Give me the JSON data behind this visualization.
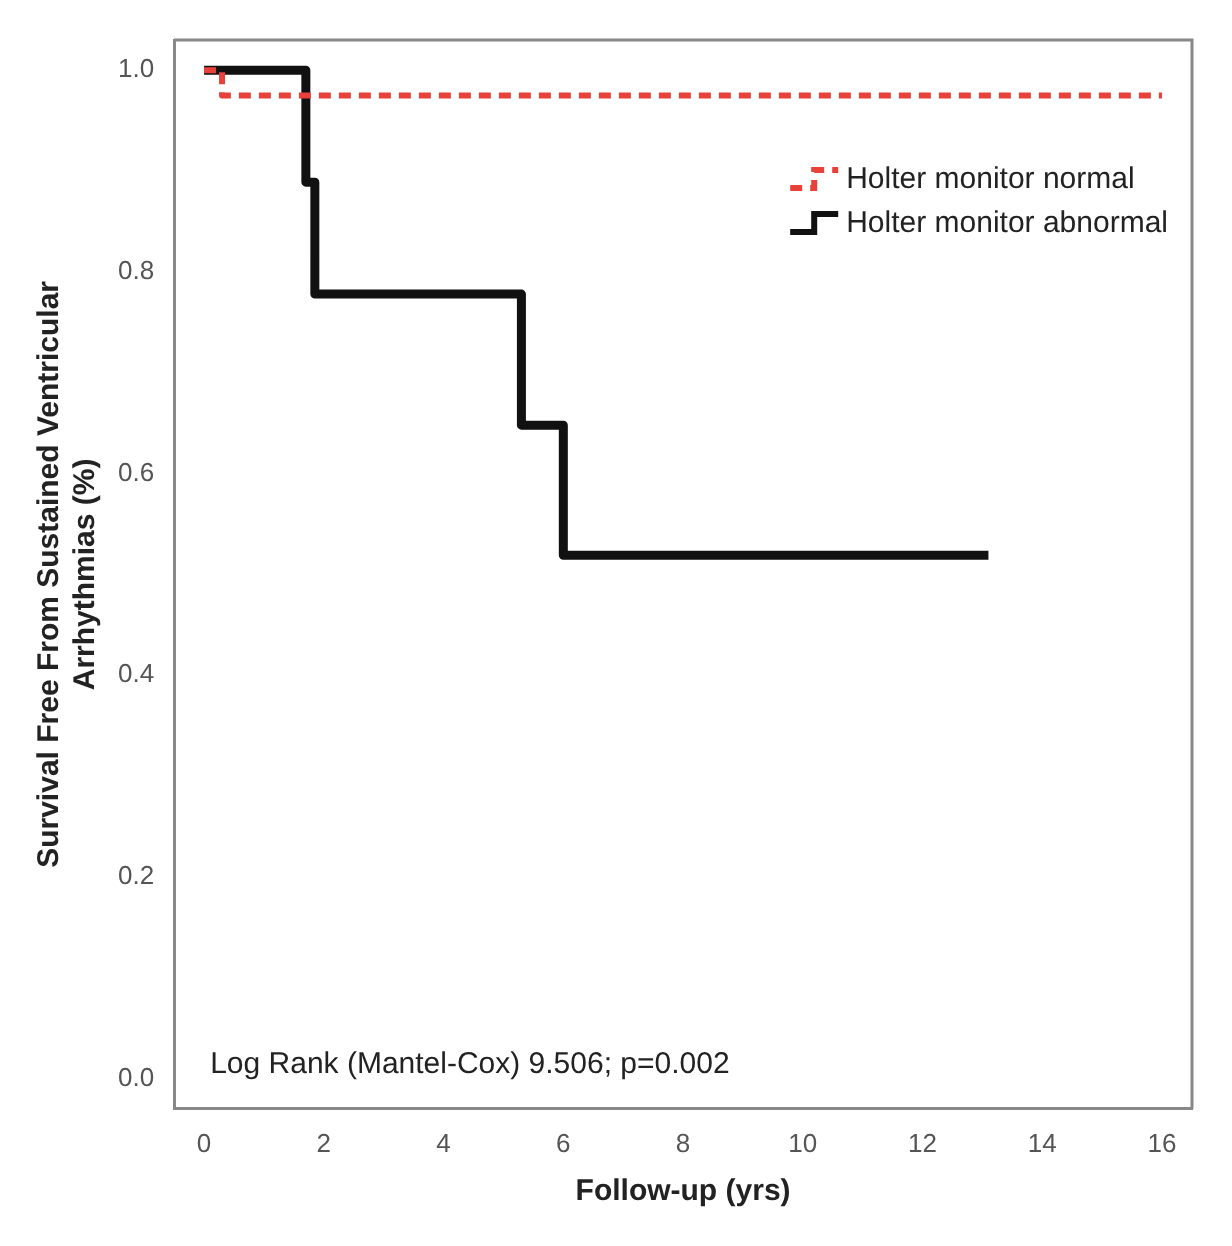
{
  "chart_data": {
    "type": "step",
    "xlabel": "Follow-up (yrs)",
    "ylabel": "Survival Free From Sustained Ventricular Arrhythmias (%)",
    "xlim": [
      -0.5,
      16.5
    ],
    "xticks": [
      0,
      2,
      4,
      6,
      8,
      10,
      12,
      14,
      16
    ],
    "ylim": [
      -0.03,
      1.03
    ],
    "yticks": [
      {
        "value": 0,
        "label": "0.0"
      },
      0.2,
      0.4,
      0.6,
      0.8,
      {
        "value": 1,
        "label": "1.0"
      }
    ],
    "series": [
      {
        "name": "Holter monitor normal",
        "color": "#e8413a",
        "line_style": "dashed",
        "x": [
          0,
          0.3,
          16
        ],
        "values": [
          1,
          0.975,
          0.975
        ]
      },
      {
        "name": "Holter monitor abnormal",
        "color": "#111111",
        "line_style": "solid",
        "x": [
          0,
          1.7,
          1.85,
          5.3,
          6.0,
          13.1
        ],
        "values": [
          1,
          0.889,
          0.778,
          0.648,
          0.519,
          0.519
        ]
      }
    ],
    "legend": "top right",
    "grid": false,
    "marker": "none",
    "annotations": [
      "Log Rank (Mantel-Cox) 9.506; p=0.002"
    ]
  }
}
